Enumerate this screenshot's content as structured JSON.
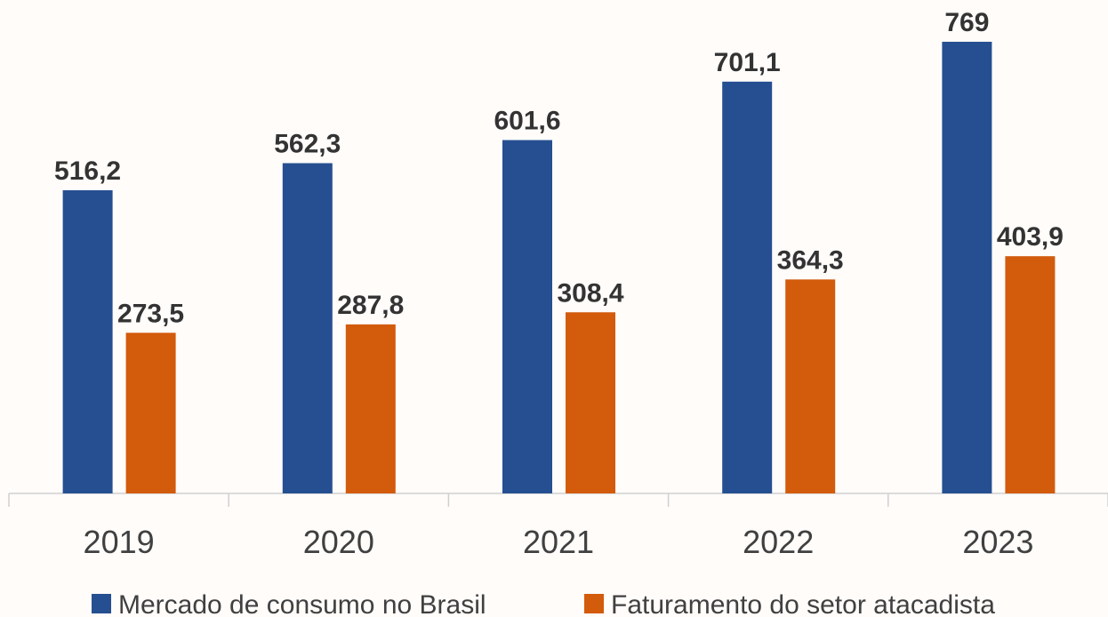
{
  "chart_data": {
    "type": "bar",
    "categories": [
      "2019",
      "2020",
      "2021",
      "2022",
      "2023"
    ],
    "series": [
      {
        "name": "Mercado de consumo no Brasil",
        "color": "#264f91",
        "values": [
          516.2,
          562.3,
          601.6,
          701.1,
          769
        ],
        "value_labels": [
          "516,2",
          "562,3",
          "601,6",
          "701,1",
          "769"
        ]
      },
      {
        "name": "Faturamento do setor atacadista",
        "color": "#d35b0c",
        "values": [
          273.5,
          287.8,
          308.4,
          364.3,
          403.9
        ],
        "value_labels": [
          "273,5",
          "287,8",
          "308,4",
          "364,3",
          "403,9"
        ]
      }
    ],
    "ylim": [
      0,
      800
    ],
    "grid": false,
    "legend": "bottom"
  }
}
